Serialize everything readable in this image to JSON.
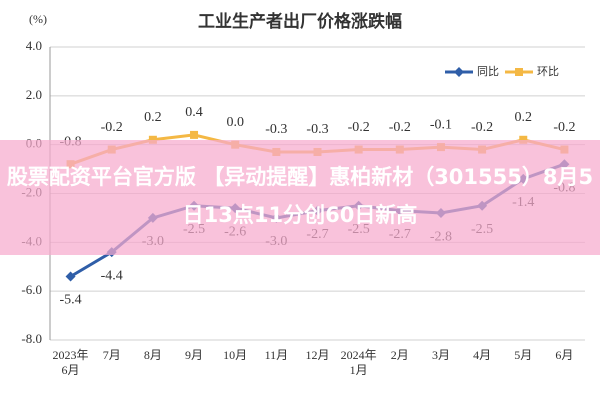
{
  "chart_data": {
    "type": "line",
    "title": "工业生产者出厂价格涨跌幅",
    "y_label": "(%)",
    "categories": [
      "2023年\n6月",
      "7月",
      "8月",
      "9月",
      "10月",
      "11月",
      "12月",
      "2024年\n1月",
      "2月",
      "3月",
      "4月",
      "5月",
      "6月"
    ],
    "series": [
      {
        "name": "同比",
        "color": "#2f5ea8",
        "values": [
          -5.4,
          -4.4,
          -3.0,
          -2.5,
          -2.6,
          -3.0,
          -2.7,
          -2.5,
          -2.7,
          -2.8,
          -2.5,
          -1.4,
          -0.8
        ],
        "value_labels": [
          "-5.4",
          "-4.4",
          "-3.0",
          "-2.5",
          "-2.6",
          "-3.0",
          "-2.7",
          "-2.5",
          "-2.7",
          "-2.8",
          "-2.5",
          "-1.4",
          "-0.8"
        ]
      },
      {
        "name": "环比",
        "color": "#f4b844",
        "values": [
          -0.8,
          -0.2,
          0.2,
          0.4,
          0.0,
          -0.3,
          -0.3,
          -0.2,
          -0.2,
          -0.1,
          -0.2,
          0.2,
          -0.2
        ],
        "value_labels": [
          "-0.8",
          "-0.2",
          "0.2",
          "0.4",
          "0.0",
          "-0.3",
          "-0.3",
          "-0.2",
          "-0.2",
          "-0.1",
          "-0.2",
          "0.2",
          "-0.2"
        ]
      }
    ],
    "ylim": [
      -8,
      4
    ],
    "yticks": [
      {
        "value": 4,
        "label": "4.0"
      },
      {
        "value": 2,
        "label": "2.0"
      },
      {
        "value": 0,
        "label": "0.0"
      },
      {
        "value": -2,
        "label": "-2.0"
      },
      {
        "value": -4,
        "label": "-4.0"
      },
      {
        "value": -6,
        "label": "-6.0"
      },
      {
        "value": -8,
        "label": "-8.0"
      }
    ],
    "grid": true
  },
  "banner": {
    "text": "股票配资平台官方版 【异动提醒】惠柏新材（301555）8月5日13点11分创60日新高"
  }
}
